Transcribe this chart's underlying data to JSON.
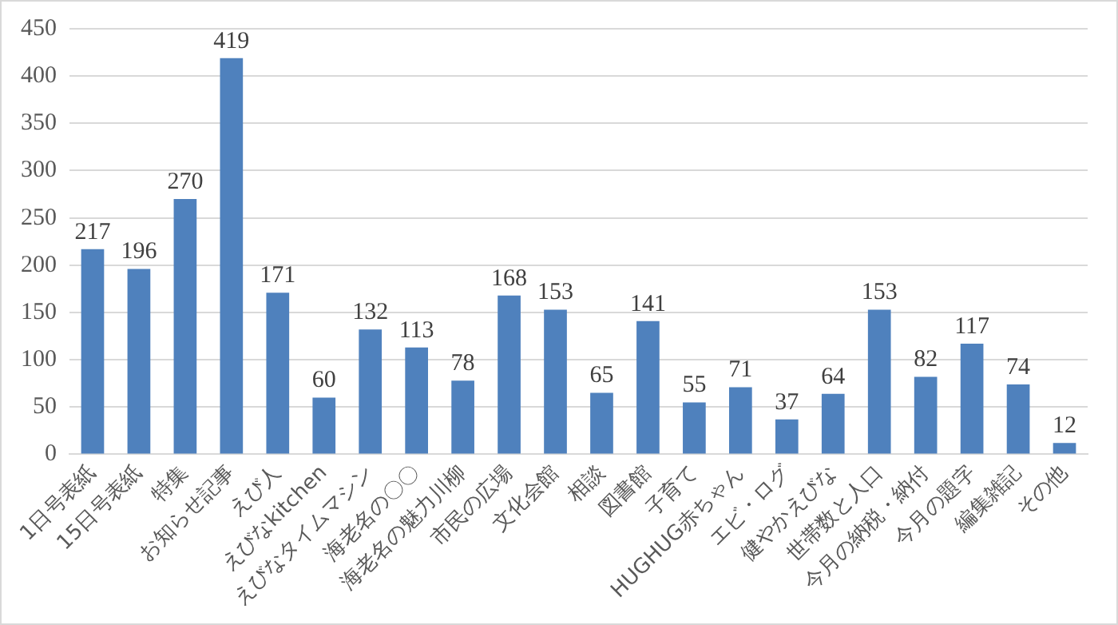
{
  "chart_data": {
    "type": "bar",
    "categories": [
      "1日号表紙",
      "15日号表紙",
      "特集",
      "お知らせ記事",
      "えび人",
      "えびなkitchen",
      "えびなタイムマシン",
      "海老名の〇〇",
      "海老名の魅力川柳",
      "市民の広場",
      "文化会館",
      "相談",
      "図書館",
      "子育て",
      "HUGHUG赤ちゃん",
      "エビ・ログ",
      "健やかえびな",
      "世帯数と人口",
      "今月の納税・納付",
      "今月の題字",
      "編集雑記",
      "その他"
    ],
    "values": [
      217,
      196,
      270,
      419,
      171,
      60,
      132,
      113,
      78,
      168,
      153,
      65,
      141,
      55,
      71,
      37,
      64,
      153,
      82,
      117,
      74,
      12
    ],
    "color": "#4f81bd",
    "ylim": [
      0,
      450
    ],
    "yticks": [
      0,
      50,
      100,
      150,
      200,
      250,
      300,
      350,
      400,
      450
    ],
    "grid": "y",
    "data_labels": true,
    "legend": false
  }
}
